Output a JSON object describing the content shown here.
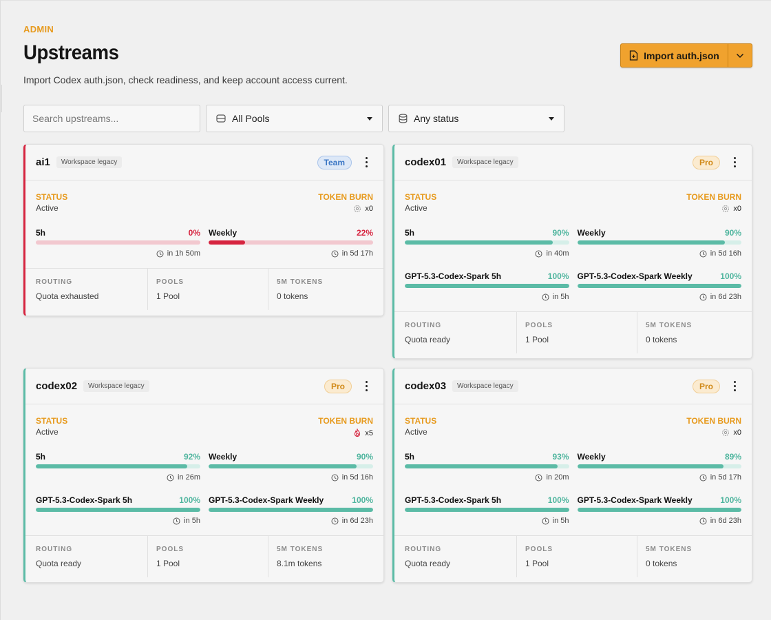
{
  "header": {
    "eyebrow": "ADMIN",
    "title": "Upstreams",
    "subtitle": "Import Codex auth.json, check readiness, and keep account access current.",
    "import_label": "Import auth.json"
  },
  "filters": {
    "search_placeholder": "Search upstreams...",
    "pools_value": "All Pools",
    "status_value": "Any status"
  },
  "labels": {
    "status": "STATUS",
    "token_burn": "TOKEN BURN",
    "routing": "ROUTING",
    "pools": "POOLS",
    "tokens": "5M TOKENS"
  },
  "colors": {
    "accent": "#f0a22e",
    "danger": "#d6243f",
    "ok": "#5bbba6",
    "team": "#3a76c4",
    "pro": "#d18a19"
  },
  "cards": [
    {
      "name": "ai1",
      "workspace": "Workspace legacy",
      "plan": "Team",
      "status": "Active",
      "burn": "x0",
      "burn_icon": "gear-icon",
      "meters": [
        {
          "label": "5h",
          "pct": "0%",
          "value": 0,
          "reset": "in 1h 50m"
        },
        {
          "label": "Weekly",
          "pct": "22%",
          "value": 22,
          "reset": "in 5d 17h"
        }
      ],
      "routing": "Quota exhausted",
      "pools": "1 Pool",
      "tokens": "0 tokens"
    },
    {
      "name": "codex01",
      "workspace": "Workspace legacy",
      "plan": "Pro",
      "status": "Active",
      "burn": "x0",
      "burn_icon": "gear-icon",
      "meters": [
        {
          "label": "5h",
          "pct": "90%",
          "value": 90,
          "reset": "in 40m"
        },
        {
          "label": "Weekly",
          "pct": "90%",
          "value": 90,
          "reset": "in 5d 16h"
        },
        {
          "label": "GPT-5.3-Codex-Spark 5h",
          "pct": "100%",
          "value": 100,
          "reset": "in 5h"
        },
        {
          "label": "GPT-5.3-Codex-Spark Weekly",
          "pct": "100%",
          "value": 100,
          "reset": "in 6d 23h"
        }
      ],
      "routing": "Quota ready",
      "pools": "1 Pool",
      "tokens": "0 tokens"
    },
    {
      "name": "codex02",
      "workspace": "Workspace legacy",
      "plan": "Pro",
      "status": "Active",
      "burn": "x5",
      "burn_icon": "fire-icon",
      "meters": [
        {
          "label": "5h",
          "pct": "92%",
          "value": 92,
          "reset": "in 26m"
        },
        {
          "label": "Weekly",
          "pct": "90%",
          "value": 90,
          "reset": "in 5d 16h"
        },
        {
          "label": "GPT-5.3-Codex-Spark 5h",
          "pct": "100%",
          "value": 100,
          "reset": "in 5h"
        },
        {
          "label": "GPT-5.3-Codex-Spark Weekly",
          "pct": "100%",
          "value": 100,
          "reset": "in 6d 23h"
        }
      ],
      "routing": "Quota ready",
      "pools": "1 Pool",
      "tokens": "8.1m tokens"
    },
    {
      "name": "codex03",
      "workspace": "Workspace legacy",
      "plan": "Pro",
      "status": "Active",
      "burn": "x0",
      "burn_icon": "gear-icon",
      "meters": [
        {
          "label": "5h",
          "pct": "93%",
          "value": 93,
          "reset": "in 20m"
        },
        {
          "label": "Weekly",
          "pct": "89%",
          "value": 89,
          "reset": "in 5d 17h"
        },
        {
          "label": "GPT-5.3-Codex-Spark 5h",
          "pct": "100%",
          "value": 100,
          "reset": "in 5h"
        },
        {
          "label": "GPT-5.3-Codex-Spark Weekly",
          "pct": "100%",
          "value": 100,
          "reset": "in 6d 23h"
        }
      ],
      "routing": "Quota ready",
      "pools": "1 Pool",
      "tokens": "0 tokens"
    }
  ]
}
